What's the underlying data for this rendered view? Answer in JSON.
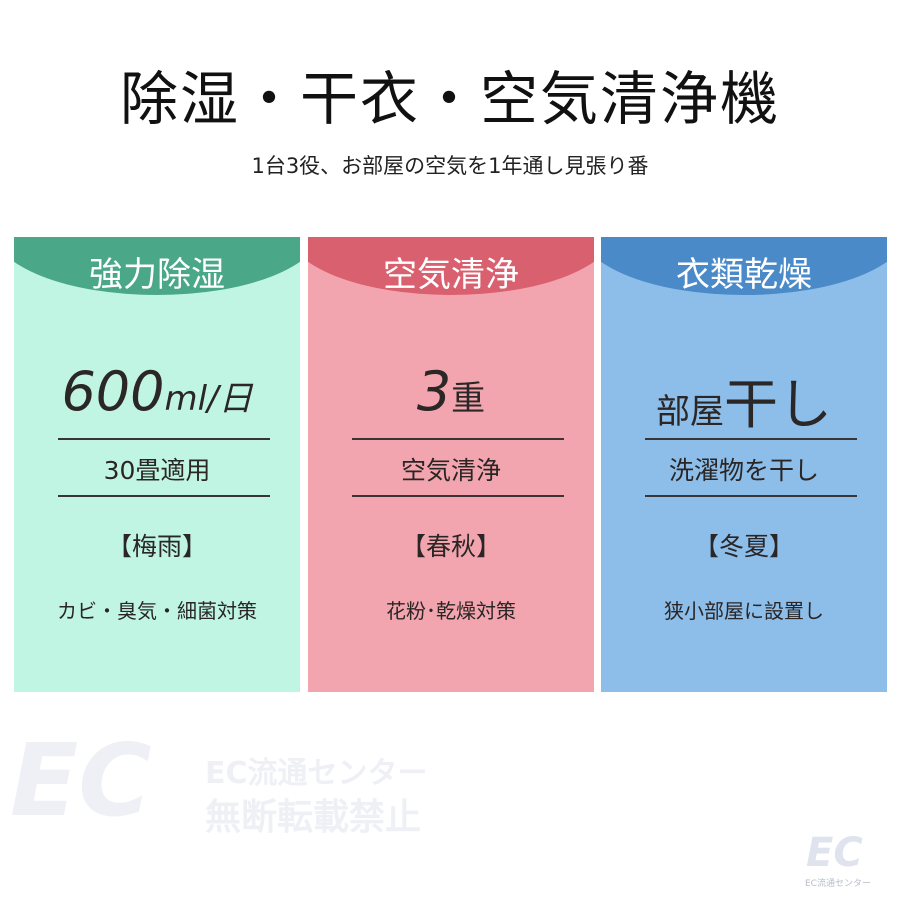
{
  "title": "除湿・干衣・空気清浄機",
  "subtitle": "1台3役、お部屋の空気を1年通し見張り番",
  "panels": [
    {
      "header": "強力除湿",
      "big": "600",
      "big_unit": "ml/日",
      "sub": "30畳適用",
      "season": "【梅雨】",
      "desc": "カビ・臭気・細菌対策",
      "header_color": "#4aa889",
      "body_color": "#c1f5e3"
    },
    {
      "header": "空気清浄",
      "big": "3",
      "big_unit": "重",
      "sub": "空気清浄",
      "season": "【春秋】",
      "desc": "花粉･乾燥対策",
      "header_color": "#d9606f",
      "body_color": "#f2a5ae"
    },
    {
      "header": "衣類乾燥",
      "big": "部屋",
      "big_unit": "干し",
      "sub": "洗濯物を干し",
      "season": "【冬夏】",
      "desc": "狭小部屋に設置し",
      "header_color": "#4a8ac8",
      "body_color": "#8dbde9"
    }
  ],
  "watermark": {
    "logo": "EC",
    "line1": "EC流通センター",
    "line2": "無断転載禁止",
    "corner": "EC流通センター"
  }
}
